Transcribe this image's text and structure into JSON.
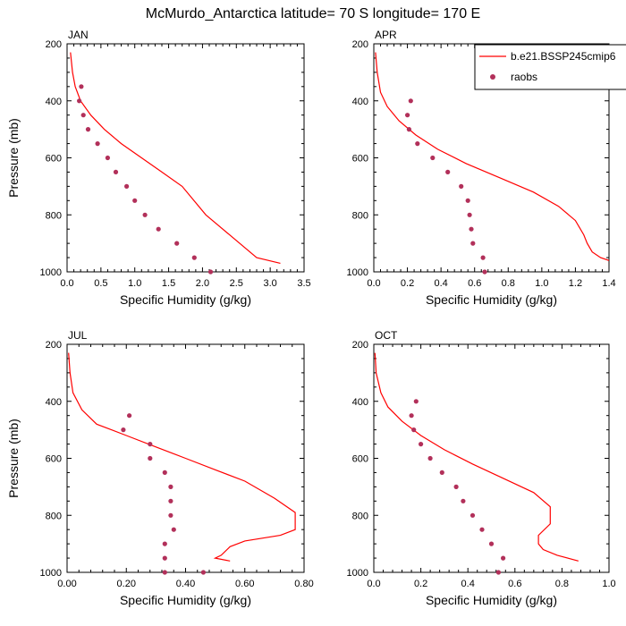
{
  "figure": {
    "title": "McMurdo_Antarctica  latitude= 70 S longitude= 170 E"
  },
  "legend": {
    "model_label": "b.e21.BSSP245cmip6",
    "obs_label": "raobs"
  },
  "colors": {
    "model_line": "#ff0000",
    "obs_marker": "#b2305a",
    "axis": "#000000"
  },
  "chart_data": [
    {
      "type": "line",
      "panel_label": "JAN",
      "xlabel": "Specific Humidity (g/kg)",
      "ylabel": "Pressure (mb)",
      "xlim": [
        0,
        3.5
      ],
      "ylim": [
        200,
        1000
      ],
      "y_inverted": true,
      "xticks": [
        "0.0",
        "0.5",
        "1.0",
        "1.5",
        "2.0",
        "2.5",
        "3.0",
        "3.5"
      ],
      "xtick_values": [
        0,
        0.5,
        1.0,
        1.5,
        2.0,
        2.5,
        3.0,
        3.5
      ],
      "yticks": [
        "200",
        "400",
        "600",
        "800",
        "1000"
      ],
      "ytick_values": [
        200,
        400,
        600,
        800,
        1000
      ],
      "series": [
        {
          "name": "b.e21.BSSP245cmip6",
          "kind": "line",
          "x": [
            0.05,
            0.08,
            0.12,
            0.2,
            0.35,
            0.55,
            0.8,
            1.1,
            1.4,
            1.7,
            2.05,
            2.4,
            2.8,
            3.15
          ],
          "y": [
            230,
            300,
            350,
            400,
            450,
            500,
            550,
            600,
            650,
            700,
            800,
            870,
            950,
            970
          ]
        },
        {
          "name": "raobs",
          "kind": "scatter",
          "x": [
            0.21,
            0.18,
            0.24,
            0.31,
            0.45,
            0.6,
            0.72,
            0.88,
            1.0,
            1.15,
            1.35,
            1.62,
            1.88,
            2.12
          ],
          "y": [
            350,
            400,
            450,
            500,
            550,
            600,
            650,
            700,
            750,
            800,
            850,
            900,
            950,
            1000
          ]
        }
      ]
    },
    {
      "type": "line",
      "panel_label": "APR",
      "xlabel": "Specific Humidity (g/kg)",
      "ylabel": "",
      "xlim": [
        0,
        1.4
      ],
      "ylim": [
        200,
        1000
      ],
      "y_inverted": true,
      "xticks": [
        "0.0",
        "0.2",
        "0.4",
        "0.6",
        "0.8",
        "1.0",
        "1.2",
        "1.4"
      ],
      "xtick_values": [
        0,
        0.2,
        0.4,
        0.6,
        0.8,
        1.0,
        1.2,
        1.4
      ],
      "yticks": [
        "200",
        "400",
        "600",
        "800",
        "1000"
      ],
      "ytick_values": [
        200,
        400,
        600,
        800,
        1000
      ],
      "series": [
        {
          "name": "b.e21.BSSP245cmip6",
          "kind": "line",
          "x": [
            0.01,
            0.02,
            0.04,
            0.08,
            0.15,
            0.25,
            0.38,
            0.55,
            0.75,
            0.95,
            1.1,
            1.2,
            1.25,
            1.27,
            1.3,
            1.35,
            1.4
          ],
          "y": [
            230,
            300,
            370,
            420,
            470,
            520,
            570,
            620,
            670,
            720,
            770,
            820,
            870,
            900,
            930,
            950,
            960
          ]
        },
        {
          "name": "raobs",
          "kind": "scatter",
          "x": [
            0.22,
            0.2,
            0.21,
            0.26,
            0.35,
            0.44,
            0.52,
            0.56,
            0.57,
            0.58,
            0.59,
            0.65,
            0.66
          ],
          "y": [
            400,
            450,
            500,
            550,
            600,
            650,
            700,
            750,
            800,
            850,
            900,
            950,
            1000
          ]
        }
      ]
    },
    {
      "type": "line",
      "panel_label": "JUL",
      "xlabel": "Specific Humidity (g/kg)",
      "ylabel": "Pressure (mb)",
      "xlim": [
        0,
        0.8
      ],
      "ylim": [
        200,
        1000
      ],
      "y_inverted": true,
      "xticks": [
        "0.00",
        "0.20",
        "0.40",
        "0.60",
        "0.80"
      ],
      "xtick_values": [
        0,
        0.2,
        0.4,
        0.6,
        0.8
      ],
      "yticks": [
        "200",
        "400",
        "600",
        "800",
        "1000"
      ],
      "ytick_values": [
        200,
        400,
        600,
        800,
        1000
      ],
      "series": [
        {
          "name": "b.e21.BSSP245cmip6",
          "kind": "line",
          "x": [
            0.005,
            0.01,
            0.02,
            0.05,
            0.1,
            0.2,
            0.3,
            0.4,
            0.5,
            0.6,
            0.7,
            0.77,
            0.77,
            0.72,
            0.6,
            0.55,
            0.52,
            0.5,
            0.55
          ],
          "y": [
            230,
            300,
            370,
            430,
            480,
            520,
            560,
            600,
            640,
            680,
            740,
            790,
            850,
            870,
            890,
            910,
            940,
            950,
            960
          ]
        },
        {
          "name": "raobs",
          "kind": "scatter",
          "x": [
            0.21,
            0.19,
            0.28,
            0.28,
            0.33,
            0.35,
            0.35,
            0.35,
            0.36,
            0.33,
            0.33,
            0.33,
            0.46
          ],
          "y": [
            450,
            500,
            550,
            600,
            650,
            700,
            750,
            800,
            850,
            900,
            950,
            1000,
            1000
          ]
        }
      ]
    },
    {
      "type": "line",
      "panel_label": "OCT",
      "xlabel": "Specific Humidity (g/kg)",
      "ylabel": "",
      "xlim": [
        0,
        1.0
      ],
      "ylim": [
        200,
        1000
      ],
      "y_inverted": true,
      "xticks": [
        "0.0",
        "0.2",
        "0.4",
        "0.6",
        "0.8",
        "1.0"
      ],
      "xtick_values": [
        0,
        0.2,
        0.4,
        0.6,
        0.8,
        1.0
      ],
      "yticks": [
        "200",
        "400",
        "600",
        "800",
        "1000"
      ],
      "ytick_values": [
        200,
        400,
        600,
        800,
        1000
      ],
      "series": [
        {
          "name": "b.e21.BSSP245cmip6",
          "kind": "line",
          "x": [
            0.005,
            0.01,
            0.03,
            0.06,
            0.12,
            0.2,
            0.3,
            0.42,
            0.55,
            0.68,
            0.75,
            0.75,
            0.7,
            0.7,
            0.72,
            0.78,
            0.87
          ],
          "y": [
            230,
            300,
            370,
            420,
            470,
            520,
            570,
            620,
            670,
            720,
            770,
            830,
            870,
            900,
            920,
            940,
            960
          ]
        },
        {
          "name": "raobs",
          "kind": "scatter",
          "x": [
            0.18,
            0.16,
            0.17,
            0.2,
            0.24,
            0.29,
            0.35,
            0.38,
            0.42,
            0.46,
            0.5,
            0.55,
            0.53
          ],
          "y": [
            400,
            450,
            500,
            550,
            600,
            650,
            700,
            750,
            800,
            850,
            900,
            950,
            1000
          ]
        }
      ]
    }
  ]
}
